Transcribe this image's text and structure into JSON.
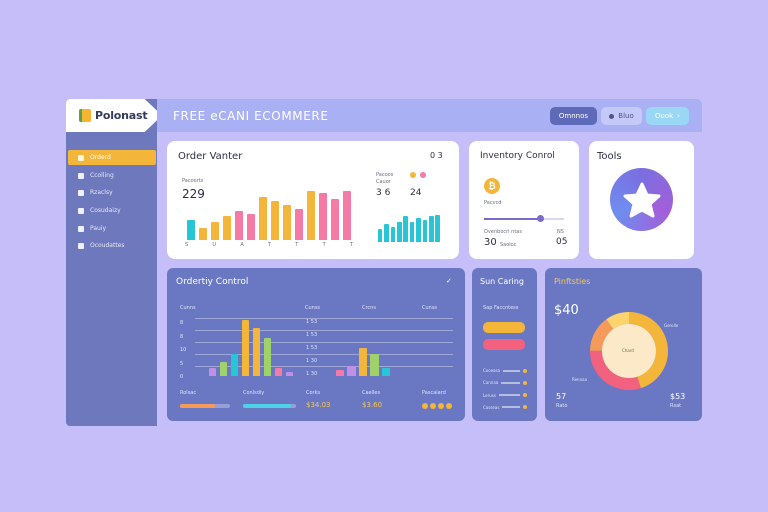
{
  "brand": {
    "name": "Polonast"
  },
  "header": {
    "title": "FREE eCANI ECOMMERE",
    "buttons": [
      {
        "label": "Omnnos",
        "color": "#5e69b8"
      },
      {
        "label": "Bluo",
        "color": "#c4c9f7"
      },
      {
        "label": "Oook",
        "color": "#9ad7f5"
      }
    ]
  },
  "sidebar": {
    "items": [
      {
        "label": "Orderd",
        "active": true
      },
      {
        "label": "Ccolling",
        "active": false
      },
      {
        "label": "Rzaclsy",
        "active": false
      },
      {
        "label": "Cosudaizy",
        "active": false
      },
      {
        "label": "Pauiy",
        "active": false
      },
      {
        "label": "Ocoudattes",
        "active": false
      }
    ]
  },
  "order_card": {
    "title": "Order Vanter",
    "menu": "0 3",
    "left_label": "Pacoorts",
    "left_value": "229",
    "right_label1": "Pacoos",
    "right_label2": "Cauor",
    "right_value1": "3 6",
    "right_value2": "24",
    "axis_labels": [
      "S",
      "U",
      "A",
      "T",
      "T",
      "T",
      "T"
    ]
  },
  "inventory_card": {
    "title": "Inventory Conrol",
    "coin_label": "Pacvcd",
    "slider_label": "Ovenbocrl ntas",
    "slider_value": 0.7,
    "value_left": "30",
    "value_right": "05",
    "small_left": "Saoloc",
    "small_right": "NS"
  },
  "tools_card": {
    "title": "Tools",
    "icon": "star-icon"
  },
  "ordertity_card": {
    "title": "Ordertiy Control",
    "check": "✓",
    "col_labels": [
      "Cunns",
      "Cunss",
      "Crcns",
      "Cunss"
    ],
    "y_labels": [
      "8",
      "8",
      "10",
      "5",
      "0"
    ],
    "mid_values": [
      "1 53",
      "1 53",
      "1 53",
      "1 30",
      "1 30"
    ],
    "legend": [
      "Rolsac",
      "Conlsdiy",
      "Corks",
      "Caelles",
      "Pascaiard"
    ],
    "bottom_values": [
      "$34.03",
      "$3.60"
    ],
    "progress": [
      0.7,
      0.9
    ]
  },
  "sun_card": {
    "title": "Sun Caring",
    "subtitle": "Sap Faccntess",
    "rows": [
      "Cooeasa",
      "Cannaa",
      "Leruss",
      "Casseas"
    ]
  },
  "donut_card": {
    "title": "Pinftsties",
    "value": "$40",
    "label_right": "Gerolle",
    "label_left": "Rennaa",
    "center_label": "Chard",
    "bottom_left": "57",
    "bottom_left_sub": "Rato",
    "bottom_right": "$53",
    "bottom_right_sub": "Rsat"
  },
  "chart_data": [
    {
      "type": "bar",
      "values": [
        20,
        12,
        18,
        24,
        30,
        26,
        44,
        40,
        36,
        32,
        50,
        48,
        42,
        50
      ],
      "colors": [
        "#27c6d6",
        "#f4b53b",
        "#f4b53b",
        "#f4b53b",
        "#f57aa6",
        "#f57aa6",
        "#f4b53b",
        "#f4b53b",
        "#f4b53b",
        "#f57aa6",
        "#f4b53b",
        "#f57aa6",
        "#f57aa6",
        "#f57aa6"
      ],
      "ylim": [
        0,
        55
      ]
    },
    {
      "type": "bar",
      "values": [
        14,
        20,
        16,
        22,
        28,
        22,
        26,
        24,
        28,
        30
      ],
      "colors": [
        "#27c6d6",
        "#27c6d6",
        "#27c6d6",
        "#27c6d6",
        "#27c6d6",
        "#27c6d6",
        "#27c6d6",
        "#27c6d6",
        "#27c6d6",
        "#27c6d6"
      ],
      "ylim": [
        0,
        35
      ]
    },
    {
      "type": "bar",
      "values": [
        8,
        14,
        22,
        56,
        48,
        38,
        8,
        4
      ],
      "colors": [
        "#c28ee6",
        "#9fd36a",
        "#27c6d6",
        "#f4b53b",
        "#f4b53b",
        "#9fd36a",
        "#f57aa6",
        "#c28ee6"
      ],
      "ylim": [
        0,
        60
      ]
    },
    {
      "type": "bar",
      "values": [
        6,
        10,
        28,
        22,
        8
      ],
      "colors": [
        "#f57aa6",
        "#c28ee6",
        "#f4b53b",
        "#9fd36a",
        "#27c6d6"
      ],
      "ylim": [
        0,
        60
      ]
    },
    {
      "type": "pie",
      "slices": [
        {
          "value": 45,
          "color": "#f4b53b"
        },
        {
          "value": 30,
          "color": "#f2627f"
        },
        {
          "value": 15,
          "color": "#f59a58"
        },
        {
          "value": 10,
          "color": "#ffd36b"
        }
      ]
    }
  ]
}
